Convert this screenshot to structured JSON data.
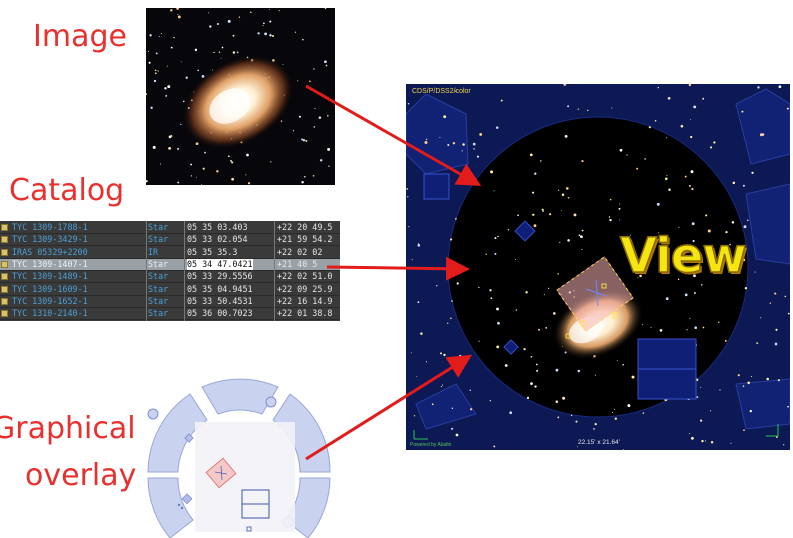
{
  "labels": {
    "image": "Image",
    "catalog": "Catalog",
    "overlay_line1": "Graphical",
    "overlay_line2": "overlay",
    "view": "View"
  },
  "catalog_rows": [
    {
      "id": "TYC 1309-1788-1",
      "type": "Star",
      "ra": "05 35 03.403",
      "dec": "+22 20 49.5"
    },
    {
      "id": "TYC 1309-3429-1",
      "type": "Star",
      "ra": "05 33 02.054",
      "dec": "+21 59 54.2"
    },
    {
      "id": "IRAS 05329+2200",
      "type": "IR",
      "ra": "05 35 35.3",
      "dec": "+22 02 02"
    },
    {
      "id": "TYC 1309-1407-1",
      "type": "Star",
      "ra": "05 34 47.0421",
      "dec": "+21 40 5",
      "selected": true
    },
    {
      "id": "TYC 1309-1489-1",
      "type": "Star",
      "ra": "05 33 29.5556",
      "dec": "+22 02 51.0"
    },
    {
      "id": "TYC 1309-1609-1",
      "type": "Star",
      "ra": "05 35 04.9451",
      "dec": "+22 09 25.9"
    },
    {
      "id": "TYC 1309-1652-1",
      "type": "Star",
      "ra": "05 33 50.4531",
      "dec": "+22 16 14.9"
    },
    {
      "id": "TYC 1310-2140-1",
      "type": "Star",
      "ra": "05 36 00.7023",
      "dec": "+22 01 38.8"
    }
  ],
  "view": {
    "survey": "CDS/P/DSS2/color",
    "fov": "22.15' x 21.64'",
    "credit": "Powered by Aladin"
  },
  "colors": {
    "label_red": "#e8312f",
    "arrow_red": "#e21b1b",
    "view_yellow": "#f5e612",
    "overlay_blue": "#c9d3ef"
  }
}
